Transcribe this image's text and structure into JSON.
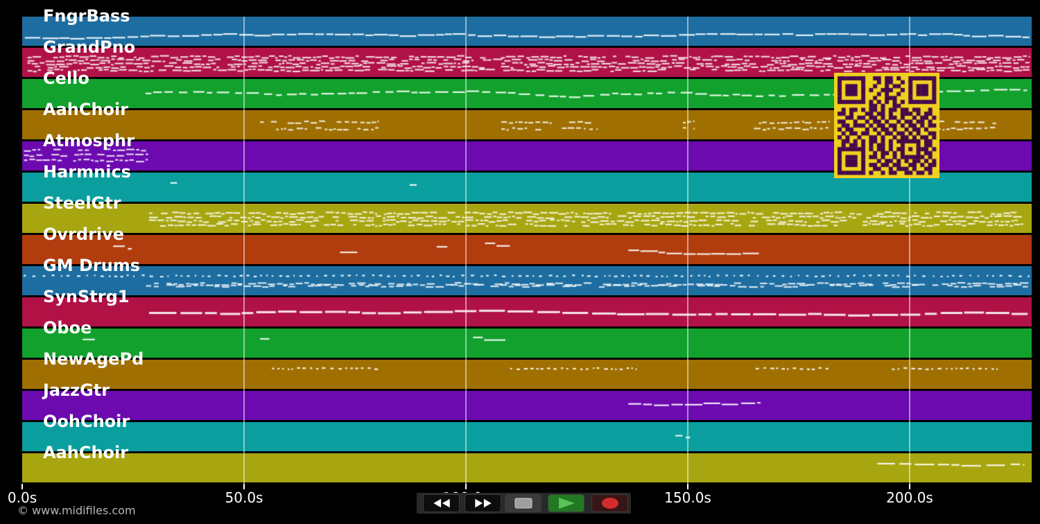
{
  "footer": {
    "copyright": "© www.midifiles.com"
  },
  "timeline": {
    "axis": {
      "tick_seconds": [
        0,
        50,
        100,
        150,
        200
      ],
      "tick_labels": [
        "0.0s",
        "50.0s",
        "100.0s",
        "150.0s",
        "200.0s"
      ],
      "seconds_per_gridline": 50,
      "duration_seconds": 227.5
    },
    "note_color": "#ffffff",
    "gridline_color": "rgba(255,255,255,0.5)",
    "tracks": [
      {
        "name": "FngrBass",
        "color": "#1d6da1",
        "clusters": [
          {
            "kind": "line",
            "t0": 0.6,
            "t1": 227.0,
            "y": 0.7,
            "seg": [
              1.5,
              4.0
            ],
            "gap": [
              0.1,
              0.6
            ],
            "drift": 0.09
          }
        ]
      },
      {
        "name": "GrandPno",
        "color": "#b01246",
        "clusters": [
          {
            "kind": "block",
            "t0": 1.2,
            "t1": 227.0,
            "y": 0.52,
            "rows": 5,
            "spread": 0.46,
            "seg": [
              0.5,
              2.2
            ],
            "gap": [
              0.08,
              0.5
            ]
          }
        ]
      },
      {
        "name": "Cello",
        "color": "#12a12c",
        "clusters": [
          {
            "kind": "line",
            "t0": 27.8,
            "t1": 226.5,
            "y": 0.47,
            "seg": [
              1.2,
              3.2
            ],
            "gap": [
              0.3,
              1.4
            ],
            "drift": 0.1
          }
        ]
      },
      {
        "name": "AahChoir",
        "color": "#a06f02",
        "clusters": [
          {
            "kind": "block",
            "t0": 53.6,
            "t1": 80.3,
            "y": 0.5,
            "rows": 2,
            "spread": 0.22,
            "seg": [
              0.4,
              1.5
            ],
            "gap": [
              0.15,
              0.8
            ]
          },
          {
            "kind": "block",
            "t0": 108.0,
            "t1": 129.5,
            "y": 0.5,
            "rows": 2,
            "spread": 0.22,
            "seg": [
              0.4,
              1.5
            ],
            "gap": [
              0.15,
              0.8
            ]
          },
          {
            "kind": "block",
            "t0": 148.9,
            "t1": 151.5,
            "y": 0.5,
            "rows": 2,
            "spread": 0.22,
            "seg": [
              0.4,
              1.2
            ],
            "gap": [
              0.15,
              0.6
            ]
          },
          {
            "kind": "block",
            "t0": 164.9,
            "t1": 181.9,
            "y": 0.5,
            "rows": 2,
            "spread": 0.22,
            "seg": [
              0.4,
              1.5
            ],
            "gap": [
              0.15,
              0.8
            ]
          },
          {
            "kind": "block",
            "t0": 194.9,
            "t1": 219.5,
            "y": 0.5,
            "rows": 2,
            "spread": 0.22,
            "seg": [
              0.4,
              1.5
            ],
            "gap": [
              0.15,
              0.8
            ]
          }
        ]
      },
      {
        "name": "Atmosphr",
        "color": "#6c0ab0",
        "clusters": [
          {
            "kind": "block",
            "t0": 0.4,
            "t1": 28.4,
            "y": 0.45,
            "rows": 3,
            "spread": 0.36,
            "seg": [
              0.5,
              1.9
            ],
            "gap": [
              0.1,
              0.6
            ]
          }
        ]
      },
      {
        "name": "Harmnics",
        "color": "#0a9f9e",
        "clusters": [
          {
            "kind": "dash",
            "t0": 33.4,
            "t1": 34.9,
            "y": 0.33
          },
          {
            "kind": "dash",
            "t0": 87.3,
            "t1": 88.9,
            "y": 0.4
          }
        ]
      },
      {
        "name": "SteelGtr",
        "color": "#a8a610",
        "clusters": [
          {
            "kind": "block",
            "t0": 28.6,
            "t1": 225.6,
            "y": 0.5,
            "rows": 4,
            "spread": 0.4,
            "seg": [
              0.5,
              2.0
            ],
            "gap": [
              0.08,
              0.5
            ]
          }
        ]
      },
      {
        "name": "Ovrdrive",
        "color": "#b13c0e",
        "clusters": [
          {
            "kind": "dash",
            "t0": 20.5,
            "t1": 23.1,
            "y": 0.36
          },
          {
            "kind": "dash",
            "t0": 23.8,
            "t1": 24.7,
            "y": 0.45
          },
          {
            "kind": "dash",
            "t0": 71.6,
            "t1": 75.5,
            "y": 0.57
          },
          {
            "kind": "dash",
            "t0": 93.4,
            "t1": 95.8,
            "y": 0.38
          },
          {
            "kind": "dash",
            "t0": 104.3,
            "t1": 106.6,
            "y": 0.26
          },
          {
            "kind": "dash",
            "t0": 106.9,
            "t1": 109.9,
            "y": 0.35
          },
          {
            "kind": "line",
            "t0": 136.6,
            "t1": 166.2,
            "y": 0.5,
            "seg": [
              1.5,
              4.5
            ],
            "gap": [
              0.1,
              0.5
            ],
            "drift": 0.1
          }
        ]
      },
      {
        "name": "GM Drums",
        "color": "#1d6da1",
        "clusters": [
          {
            "kind": "dots",
            "t0": 0.3,
            "t1": 227.0,
            "y": 0.31,
            "seg": [
              0.3,
              0.8
            ],
            "gap": [
              0.7,
              1.7
            ]
          },
          {
            "kind": "block",
            "t0": 27.9,
            "t1": 227.0,
            "y": 0.62,
            "rows": 2,
            "spread": 0.07,
            "seg": [
              0.8,
              2.0
            ],
            "gap": [
              0.12,
              0.6
            ]
          }
        ]
      },
      {
        "name": "SynStrg1",
        "color": "#b01246",
        "clusters": [
          {
            "kind": "line",
            "t0": 28.6,
            "t1": 226.6,
            "y": 0.5,
            "seg": [
              2.5,
              7.0
            ],
            "gap": [
              0.2,
              1.0
            ],
            "drift": 0.07,
            "h": 3
          }
        ]
      },
      {
        "name": "Oboe",
        "color": "#12a12c",
        "clusters": [
          {
            "kind": "dash",
            "t0": 13.6,
            "t1": 16.4,
            "y": 0.35
          },
          {
            "kind": "dash",
            "t0": 53.6,
            "t1": 55.7,
            "y": 0.33
          },
          {
            "kind": "dash",
            "t0": 101.6,
            "t1": 103.8,
            "y": 0.28
          },
          {
            "kind": "dash",
            "t0": 104.1,
            "t1": 108.9,
            "y": 0.37
          }
        ]
      },
      {
        "name": "NewAgePd",
        "color": "#a06f02",
        "clusters": [
          {
            "kind": "dots",
            "t0": 56.3,
            "t1": 80.3,
            "y": 0.28,
            "seg": [
              0.3,
              0.9
            ],
            "gap": [
              0.4,
              1.1
            ]
          },
          {
            "kind": "dots",
            "t0": 110.0,
            "t1": 138.4,
            "y": 0.28,
            "seg": [
              0.3,
              0.9
            ],
            "gap": [
              0.4,
              1.1
            ]
          },
          {
            "kind": "dots",
            "t0": 165.3,
            "t1": 181.7,
            "y": 0.28,
            "seg": [
              0.3,
              0.9
            ],
            "gap": [
              0.4,
              1.1
            ]
          },
          {
            "kind": "dots",
            "t0": 196.0,
            "t1": 219.6,
            "y": 0.28,
            "seg": [
              0.3,
              0.9
            ],
            "gap": [
              0.4,
              1.1
            ]
          }
        ]
      },
      {
        "name": "JazzGtr",
        "color": "#6c0ab0",
        "clusters": [
          {
            "kind": "line",
            "t0": 136.6,
            "t1": 166.4,
            "y": 0.42,
            "seg": [
              1.5,
              4.0
            ],
            "gap": [
              0.15,
              0.7
            ],
            "drift": 0.1
          }
        ]
      },
      {
        "name": "OohChoir",
        "color": "#0a9f9e",
        "clusters": [
          {
            "kind": "dash",
            "t0": 147.2,
            "t1": 148.8,
            "y": 0.44
          },
          {
            "kind": "dash",
            "t0": 149.5,
            "t1": 150.5,
            "y": 0.5
          }
        ]
      },
      {
        "name": "AahChoir",
        "color": "#a8a610",
        "clusters": [
          {
            "kind": "line",
            "t0": 192.7,
            "t1": 225.6,
            "y": 0.33,
            "seg": [
              1.5,
              4.5
            ],
            "gap": [
              0.4,
              1.3
            ],
            "drift": 0.08
          }
        ]
      }
    ]
  },
  "transport": {
    "bar_color": "#282828",
    "buttons": [
      {
        "name": "rewind",
        "icon": "rewind-icon",
        "bg": "#0d0d0d",
        "glyph": "#ffffff"
      },
      {
        "name": "fast-forward",
        "icon": "fast-forward-icon",
        "bg": "#0d0d0d",
        "glyph": "#ffffff"
      },
      {
        "name": "stop",
        "icon": "stop-icon",
        "bg": "#3a3a3a",
        "glyph": "#9f9f9f"
      },
      {
        "name": "play",
        "icon": "play-icon",
        "bg": "#217a21",
        "glyph": "#5ac35a"
      },
      {
        "name": "record",
        "icon": "record-icon",
        "bg": "#381515",
        "glyph": "#d32c2c"
      }
    ]
  },
  "qr": {
    "background": "#f0d120",
    "foreground": "#44094b",
    "matrix": [
      "1111111001101101001111111",
      "1000001000101100101000001",
      "1011101001001011001011101",
      "1011101010011100101011101",
      "1011101000101001001011101",
      "1000001001001110001000001",
      "1111111010101010101111111",
      "0000000011010011000000000",
      "0101101011010110110110010",
      "1101000110110100111010110",
      "0011011011010110100101101",
      "1100100101101001011011010",
      "0110111010110110101101011",
      "1011000101011010010110100",
      "0101101100101101101010011",
      "1010010011010010110101101",
      "0110101011010101111110110",
      "0101101010110100100010110",
      "1111111010110101101011101",
      "1000001001011010100010110",
      "1011101011010010111111010",
      "1011101000101101010110101",
      "1011101011011011001101011",
      "1000001001100101110100110",
      "1111111010010110011011010"
    ]
  }
}
